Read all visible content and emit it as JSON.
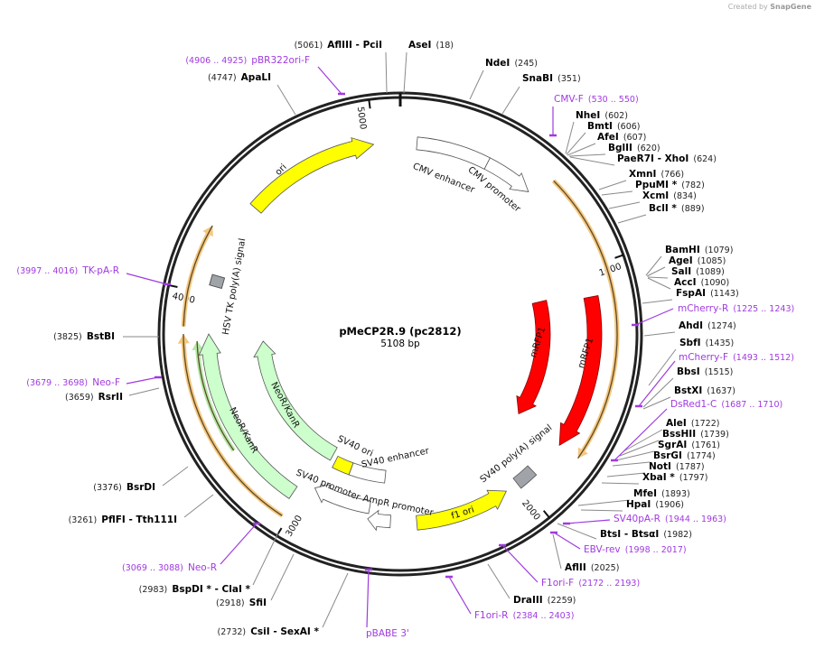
{
  "credit": {
    "prefix": "Created by",
    "brand": "SnapGene"
  },
  "plasmid": {
    "name": "pMeCP2R.9 (pc2812)",
    "length_label": "5108 bp",
    "length_bp": 5108
  },
  "ticks": [
    "1000",
    "2000",
    "3000",
    "4000",
    "5000"
  ],
  "features": [
    {
      "name": "ori",
      "color": "#ffff00"
    },
    {
      "name": "CMV enhancer",
      "color": "#ffffff"
    },
    {
      "name": "CMV promoter",
      "color": "#ffffff"
    },
    {
      "name": "mRFP1",
      "color": "#ff0000"
    },
    {
      "name": "mRFP1",
      "color": "#ff0000"
    },
    {
      "name": "SV40 poly(A) signal",
      "color": "#a0a4a8"
    },
    {
      "name": "f1 ori",
      "color": "#ffff00"
    },
    {
      "name": "AmpR promoter",
      "color": "#ffffff"
    },
    {
      "name": "SV40 promoter",
      "color": "#ffffff"
    },
    {
      "name": "SV40 ori",
      "color": "#ffff00"
    },
    {
      "name": "SV40 enhancer",
      "color": "#ffffff"
    },
    {
      "name": "NeoR/KanR",
      "color": "#ccffcc"
    },
    {
      "name": "NeoR/KanR",
      "color": "#ccffcc"
    },
    {
      "name": "HSV TK poly(A) signal",
      "color": "#a0a4a8"
    }
  ],
  "enzymes_right": [
    {
      "name": "AseI",
      "pos": "(18)"
    },
    {
      "name": "NdeI",
      "pos": "(245)"
    },
    {
      "name": "SnaBI",
      "pos": "(351)"
    },
    {
      "name": "NheI",
      "pos": "(602)"
    },
    {
      "name": "BmtI",
      "pos": "(606)"
    },
    {
      "name": "AfeI",
      "pos": "(607)"
    },
    {
      "name": "BglII",
      "pos": "(620)"
    },
    {
      "name": "PaeR7I  - XhoI",
      "pos": "(624)"
    },
    {
      "name": "XmnI",
      "pos": "(766)"
    },
    {
      "name": "PpuMI *",
      "pos": "(782)"
    },
    {
      "name": "XcmI",
      "pos": "(834)"
    },
    {
      "name": "BclI *",
      "pos": "(889)"
    },
    {
      "name": "BamHI",
      "pos": "(1079)"
    },
    {
      "name": "AgeI",
      "pos": "(1085)"
    },
    {
      "name": "SalI",
      "pos": "(1089)"
    },
    {
      "name": "AccI",
      "pos": "(1090)"
    },
    {
      "name": "FspAI",
      "pos": "(1143)"
    },
    {
      "name": "AhdI",
      "pos": "(1274)"
    },
    {
      "name": "SbfI",
      "pos": "(1435)"
    },
    {
      "name": "BbsI",
      "pos": "(1515)"
    },
    {
      "name": "BstXI",
      "pos": "(1637)"
    },
    {
      "name": "AleI",
      "pos": "(1722)"
    },
    {
      "name": "BssHII",
      "pos": "(1739)"
    },
    {
      "name": "SgrAI",
      "pos": "(1761)"
    },
    {
      "name": "BsrGI",
      "pos": "(1774)"
    },
    {
      "name": "NotI",
      "pos": "(1787)"
    },
    {
      "name": "XbaI *",
      "pos": "(1797)"
    },
    {
      "name": "MfeI",
      "pos": "(1893)"
    },
    {
      "name": "HpaI",
      "pos": "(1906)"
    },
    {
      "name": "BtsI  - BtsαI",
      "pos": "(1982)"
    },
    {
      "name": "AflII",
      "pos": "(2025)"
    },
    {
      "name": "DraIII",
      "pos": "(2259)"
    }
  ],
  "enzymes_left": [
    {
      "name": "AflIII  - PciI",
      "pos": "(5061)"
    },
    {
      "name": "ApaLI",
      "pos": "(4747)"
    },
    {
      "name": "BstBI",
      "pos": "(3825)"
    },
    {
      "name": "RsrII",
      "pos": "(3659)"
    },
    {
      "name": "BsrDI",
      "pos": "(3376)"
    },
    {
      "name": "PflFI  - Tth111I",
      "pos": "(3261)"
    },
    {
      "name": "BspDI *  - ClaI *",
      "pos": "(2983)"
    },
    {
      "name": "SfiI",
      "pos": "(2918)"
    },
    {
      "name": "CsiI  - SexAI *",
      "pos": "(2732)"
    }
  ],
  "primers_right": [
    {
      "name": "CMV-F",
      "range": "(530 .. 550)"
    },
    {
      "name": "mCherry-R",
      "range": "(1225 .. 1243)"
    },
    {
      "name": "mCherry-F",
      "range": "(1493 .. 1512)"
    },
    {
      "name": "DsRed1-C",
      "range": "(1687 .. 1710)"
    },
    {
      "name": "SV40pA-R",
      "range": "(1944 .. 1963)"
    },
    {
      "name": "EBV-rev",
      "range": "(1998 .. 2017)"
    },
    {
      "name": "F1ori-F",
      "range": "(2172 .. 2193)"
    },
    {
      "name": "F1ori-R",
      "range": "(2384 .. 2403)"
    },
    {
      "name": "pBABE 3'",
      "range": ""
    }
  ],
  "primers_left": [
    {
      "name": "pBR322ori-F",
      "range": "(4906 .. 4925)"
    },
    {
      "name": "TK-pA-R",
      "range": "(3997 .. 4016)"
    },
    {
      "name": "Neo-F",
      "range": "(3679 .. 3698)"
    },
    {
      "name": "Neo-R",
      "range": "(3069 .. 3088)"
    }
  ],
  "colors": {
    "backbone": "#222222",
    "primer": "#a03ae0",
    "annotation_orange": "#f5c77e",
    "dark_green": "#2e8b2e"
  }
}
